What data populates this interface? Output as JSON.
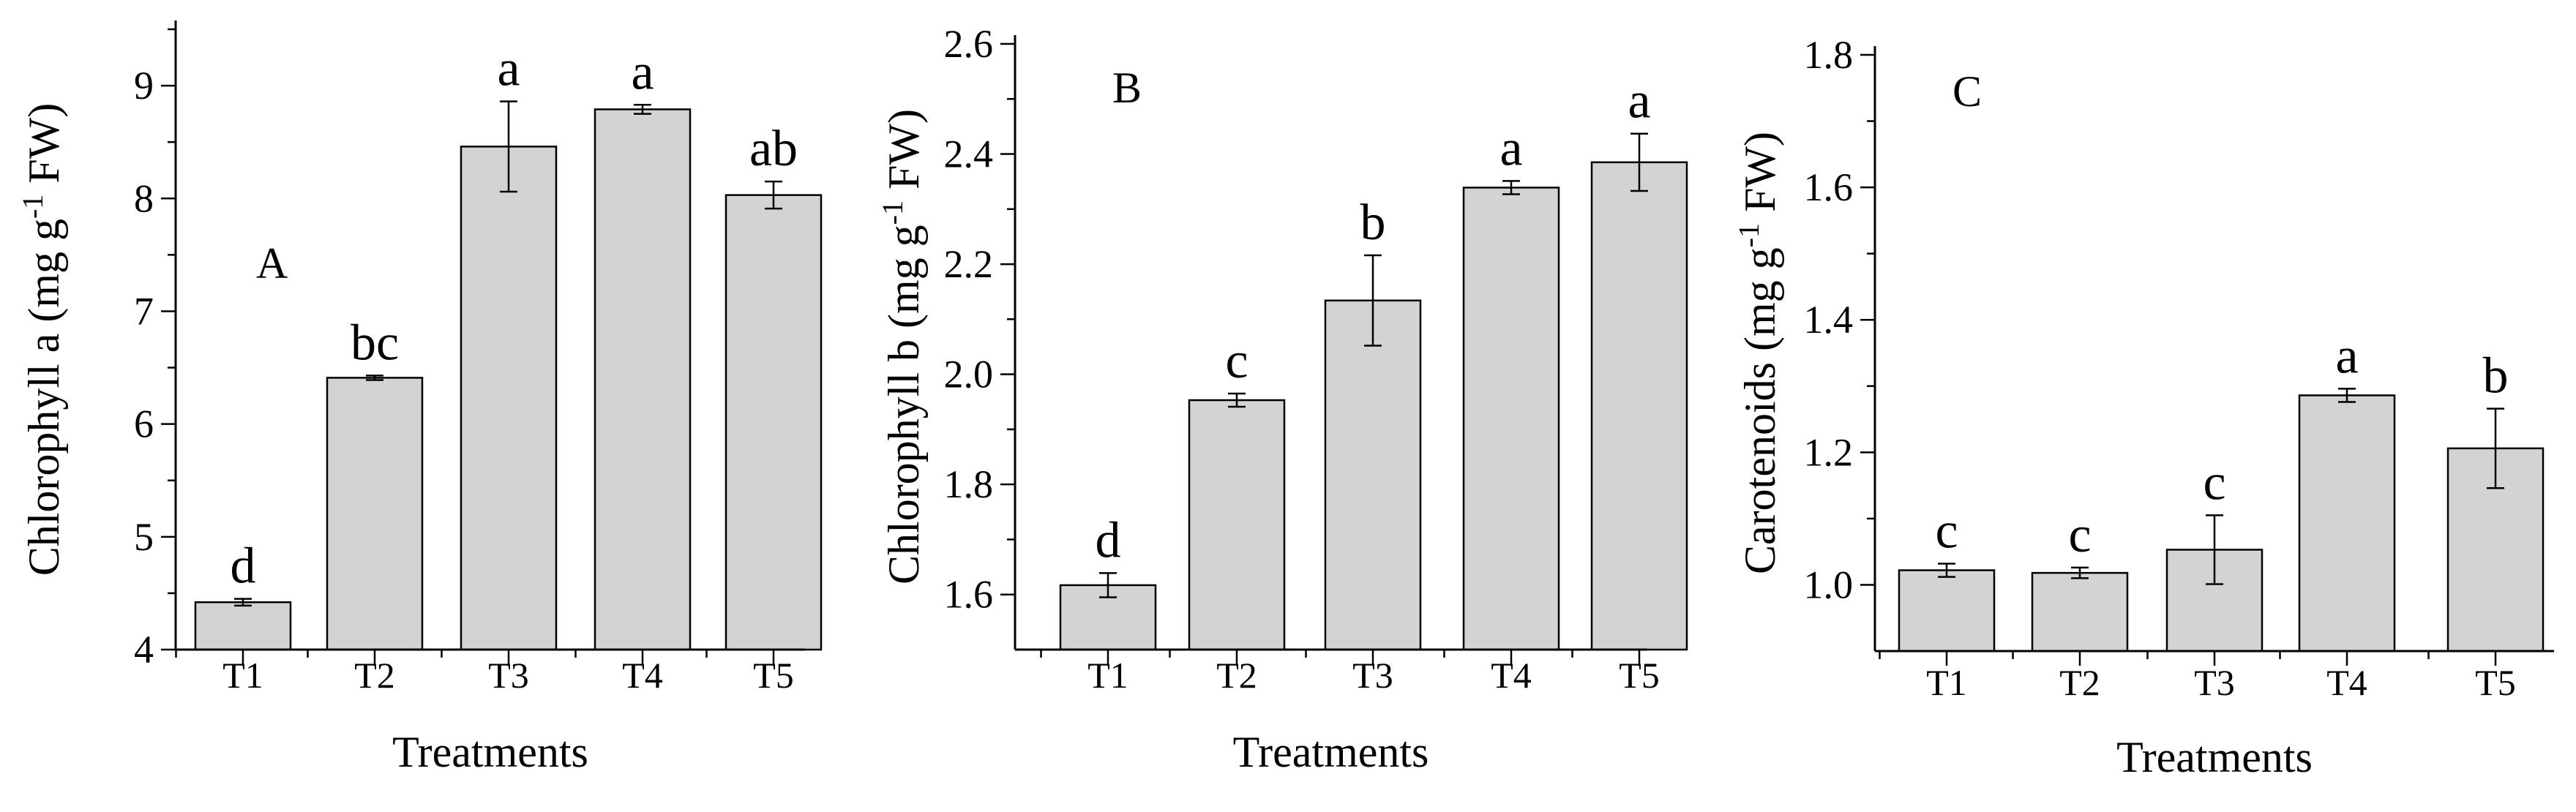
{
  "chart_data": [
    {
      "type": "bar",
      "panel_label": "A",
      "ylabel": "Chlorophyll a (mg g",
      "ylabel_sup": "-1",
      "ylabel_end": " FW)",
      "xlabel": "Treatments",
      "categories": [
        "T1",
        "T2",
        "T3",
        "T4",
        "T5"
      ],
      "values": [
        4.42,
        6.41,
        8.46,
        8.79,
        8.03
      ],
      "errors": [
        0.03,
        0.02,
        0.4,
        0.04,
        0.12
      ],
      "letters": [
        "d",
        "bc",
        "a",
        "a",
        "ab"
      ],
      "ylim": [
        4,
        9.5
      ],
      "yticks": [
        4,
        5,
        6,
        7,
        8,
        9
      ],
      "ytick_labels": [
        "4",
        "5",
        "6",
        "7",
        "8",
        "9"
      ],
      "bar_color": "#d3d3d3"
    },
    {
      "type": "bar",
      "panel_label": "B",
      "ylabel": "Chlorophyll b (mg g",
      "ylabel_sup": "-1",
      "ylabel_end": " FW)",
      "xlabel": "Treatments",
      "categories": [
        "T1",
        "T2",
        "T3",
        "T4",
        "T5"
      ],
      "values": [
        1.617,
        1.953,
        2.134,
        2.339,
        2.385
      ],
      "errors": [
        0.022,
        0.012,
        0.082,
        0.012,
        0.052
      ],
      "letters": [
        "d",
        "c",
        "b",
        "a",
        "a"
      ],
      "ylim": [
        1.5,
        2.6
      ],
      "yticks": [
        1.6,
        1.8,
        2.0,
        2.2,
        2.4,
        2.6
      ],
      "ytick_labels": [
        "1.6",
        "1.8",
        "2.0",
        "2.2",
        "2.4",
        "2.6"
      ],
      "bar_color": "#d3d3d3"
    },
    {
      "type": "bar",
      "panel_label": "C",
      "ylabel": "Carotenoids (mg g",
      "ylabel_sup": "-1",
      "ylabel_end": " FW)",
      "xlabel": "Treatments",
      "categories": [
        "T1",
        "T2",
        "T3",
        "T4",
        "T5"
      ],
      "values": [
        1.022,
        1.018,
        1.053,
        1.286,
        1.206
      ],
      "errors": [
        0.01,
        0.008,
        0.052,
        0.01,
        0.06
      ],
      "letters": [
        "c",
        "c",
        "c",
        "a",
        "b"
      ],
      "ylim": [
        0.9,
        1.8
      ],
      "yticks": [
        1.0,
        1.2,
        1.4,
        1.6,
        1.8
      ],
      "ytick_labels": [
        "1.0",
        "1.2",
        "1.4",
        "1.6",
        "1.8"
      ],
      "bar_color": "#d3d3d3"
    }
  ]
}
